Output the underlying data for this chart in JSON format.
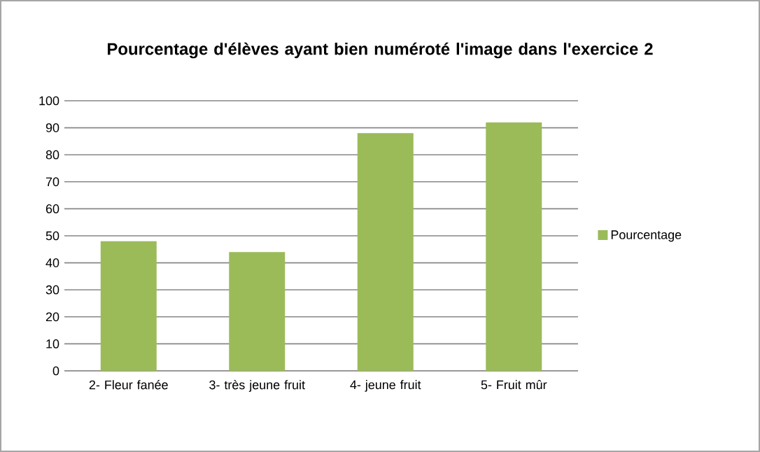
{
  "chart_data": {
    "type": "bar",
    "title": "Pourcentage d'élèves ayant bien numéroté l'image dans l'exercice 2",
    "categories": [
      "2- Fleur fanée",
      "3- très jeune fruit",
      "4- jeune fruit",
      "5- Fruit mûr"
    ],
    "series": [
      {
        "name": "Pourcentage",
        "color": "#9bbb59",
        "values": [
          48,
          44,
          88,
          92
        ]
      }
    ],
    "ylim": [
      0,
      100
    ],
    "yticks": [
      0,
      10,
      20,
      30,
      40,
      50,
      60,
      70,
      80,
      90,
      100
    ],
    "grid": "y",
    "legend": "right"
  }
}
